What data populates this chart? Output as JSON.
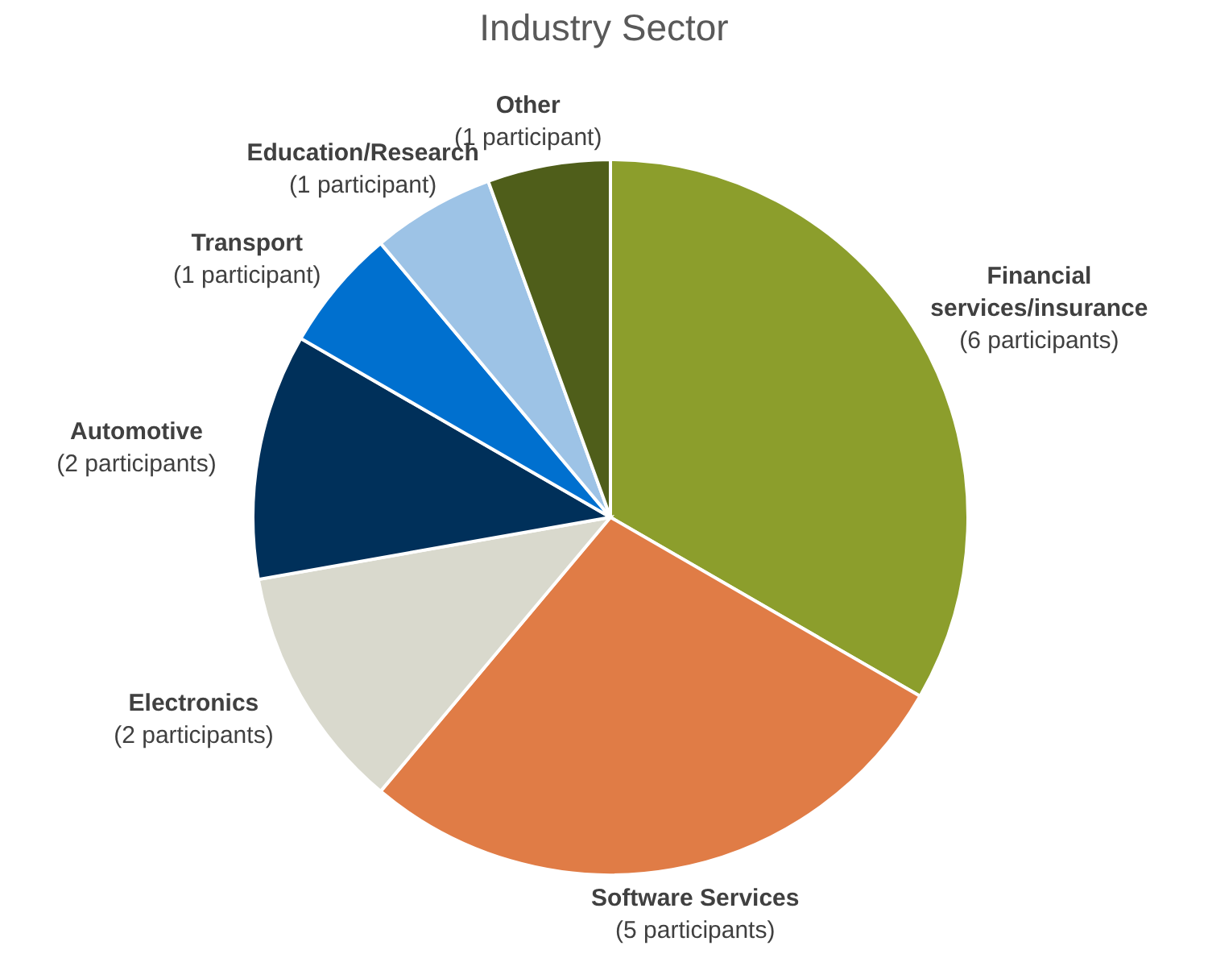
{
  "chart_data": {
    "type": "pie",
    "title": "Industry Sector",
    "categories": [
      "Financial services/insurance",
      "Software Services",
      "Electronics",
      "Automotive",
      "Transport",
      "Education/Research",
      "Other"
    ],
    "values": [
      6,
      5,
      2,
      2,
      1,
      1,
      1
    ],
    "value_labels": [
      "(6 participants)",
      "(5 participants)",
      "(2 participants)",
      "(2 participants)",
      "(1 participant)",
      "(1 participant)",
      "(1 participant)"
    ],
    "colors": [
      "#8c9e2c",
      "#e07c46",
      "#d9d9cd",
      "#00305a",
      "#0070cf",
      "#9dc3e6",
      "#4f5e1a"
    ]
  }
}
